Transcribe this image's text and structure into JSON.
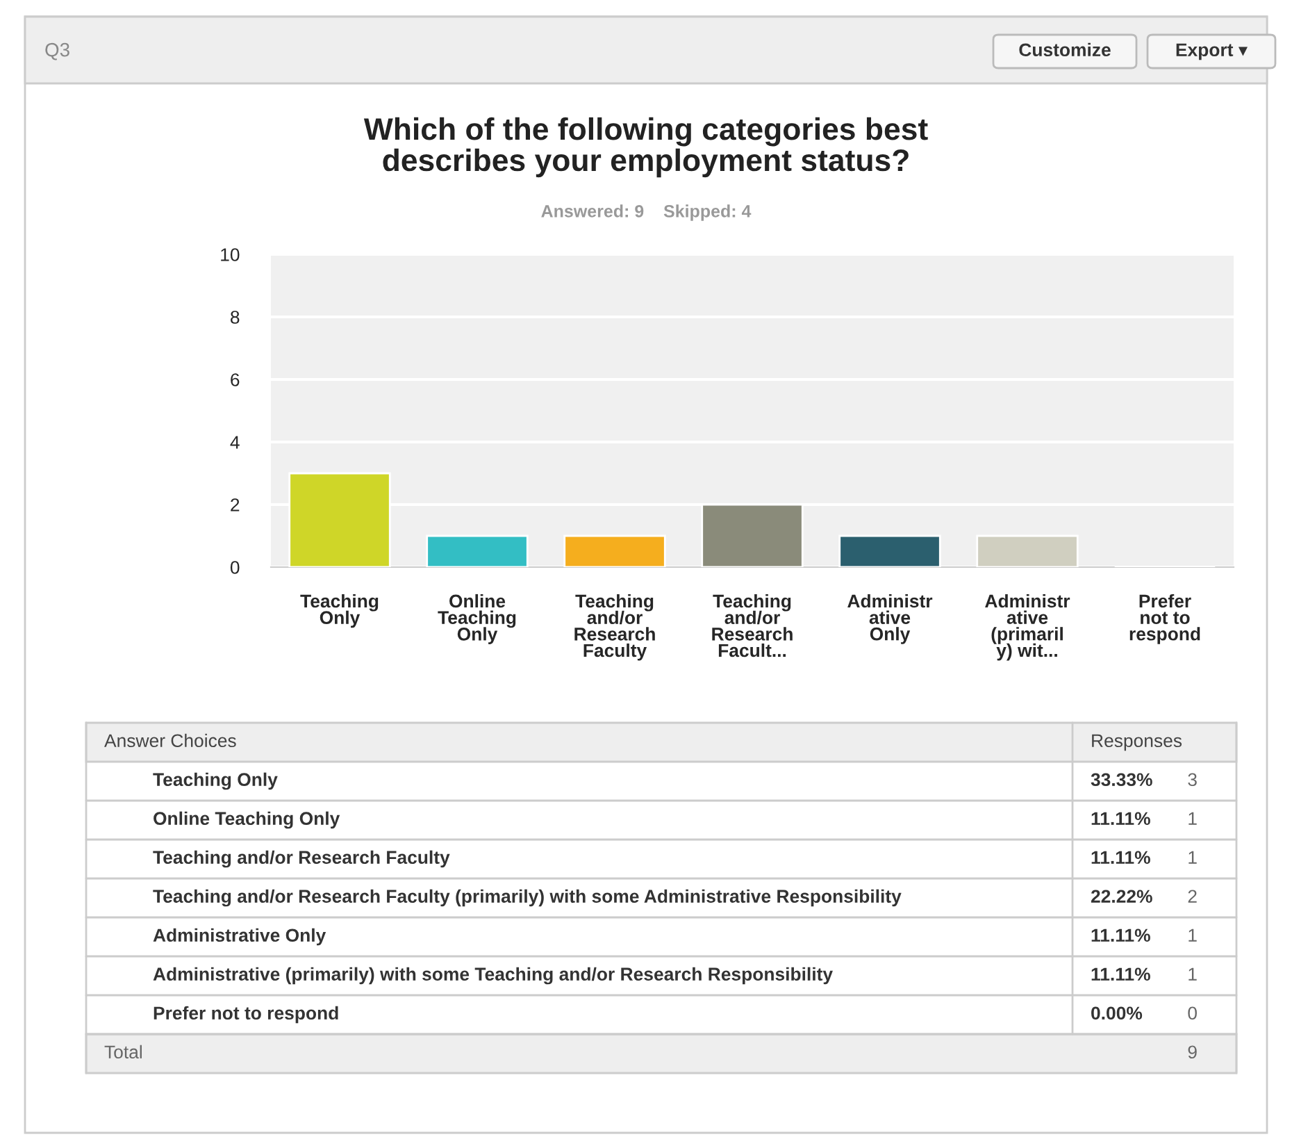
{
  "chart_data": {
    "type": "bar",
    "title": "Which of the following categories best\ndescribes your employment status?",
    "subtitle": "Answered: 9    Skipped: 4",
    "categories": [
      "Teaching\nOnly",
      "Online\nTeaching\nOnly",
      "Teaching\nand/or\nResearch\nFaculty",
      "Teaching\nand/or\nResearch\nFacult...",
      "Administr\native\nOnly",
      "Administr\native\n(primaril\ny) wit...",
      "Prefer\nnot to\nrespond"
    ],
    "values": [
      3,
      1,
      1,
      2,
      1,
      1,
      0
    ],
    "colors": [
      "#cfd628",
      "#33bec4",
      "#f5ae1e",
      "#8a8b7a",
      "#2b5f6e",
      "#d0cfc0",
      null
    ],
    "ylim": [
      0,
      10
    ],
    "yticks": [
      0,
      2,
      4,
      6,
      8,
      10
    ],
    "grid": "y",
    "annotations": [
      "Q3",
      "Customize",
      "Export ▾",
      "Answer Choices",
      "Responses",
      "Teaching Only",
      "33.33%",
      "3",
      "Online Teaching Only",
      "11.11%",
      "1",
      "Teaching and/or Research Faculty",
      "11.11%",
      "1",
      "Teaching and/or Research Faculty (primarily) with some Administrative Responsibility",
      "22.22%",
      "2",
      "Administrative Only",
      "11.11%",
      "1",
      "Administrative (primarily) with some Teaching and/or Research Responsibility",
      "11.11%",
      "1",
      "Prefer not to respond",
      "0.00%",
      "0",
      "Total",
      "9"
    ]
  }
}
